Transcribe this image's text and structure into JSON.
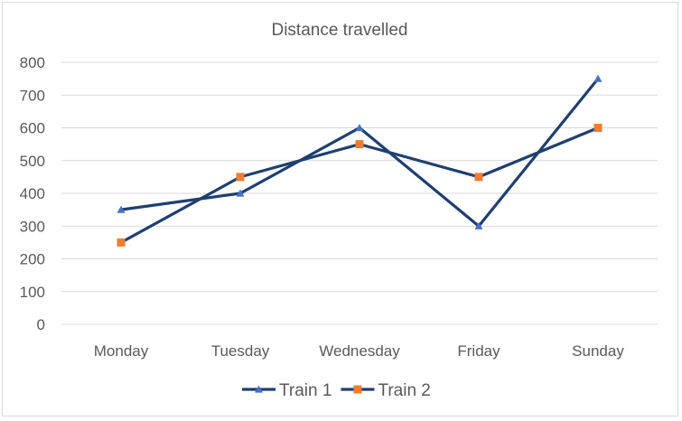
{
  "chart_data": {
    "type": "line",
    "title": "Distance travelled",
    "xlabel": "",
    "ylabel": "",
    "categories": [
      "Monday",
      "Tuesday",
      "Wednesday",
      "Friday",
      "Sunday"
    ],
    "ylim": [
      0,
      800
    ],
    "yticks": [
      0,
      100,
      200,
      300,
      400,
      500,
      600,
      700,
      800
    ],
    "grid": true,
    "legend_position": "bottom",
    "series": [
      {
        "name": "Train 1",
        "values": [
          350,
          400,
          600,
          300,
          750
        ],
        "line_color": "#1f3f6f",
        "marker": "triangle",
        "marker_color": "#4472c4"
      },
      {
        "name": "Train 2",
        "values": [
          250,
          450,
          550,
          450,
          600
        ],
        "line_color": "#1f3f6f",
        "marker": "square",
        "marker_color": "#ed7d31"
      }
    ]
  }
}
